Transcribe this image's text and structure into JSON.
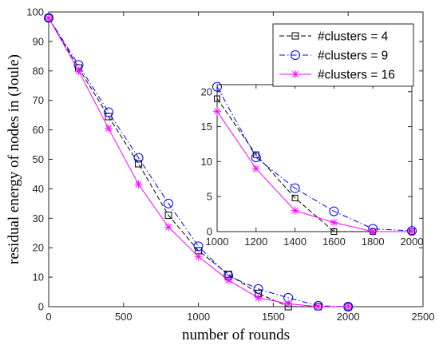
{
  "chart_data": [
    {
      "type": "line",
      "title": "",
      "xlabel": "number of rounds",
      "ylabel": "residual energy of nodes in (Joule)",
      "xlim": [
        0,
        2500
      ],
      "ylim": [
        0,
        100
      ],
      "xticks": [
        "0",
        "500",
        "1000",
        "1500",
        "2000",
        "2500"
      ],
      "yticks": [
        "0",
        "10",
        "20",
        "30",
        "40",
        "50",
        "60",
        "70",
        "80",
        "90",
        "100"
      ],
      "grid": false,
      "legend_position": "top-right",
      "series": [
        {
          "name": "#clusters = 4",
          "color": "#000000",
          "line_style": "dashed",
          "marker": "square",
          "x": [
            0,
            200,
            400,
            600,
            800,
            1000,
            1200,
            1400,
            1600,
            1800,
            2000
          ],
          "y": [
            98,
            81,
            64.5,
            48.5,
            31,
            19,
            11,
            4.5,
            0,
            0,
            0
          ]
        },
        {
          "name": "#clusters = 9",
          "color": "#0000ff",
          "line_style": "dash-dot",
          "marker": "circle",
          "x": [
            0,
            200,
            400,
            600,
            800,
            1000,
            1200,
            1400,
            1600,
            1800,
            2000
          ],
          "y": [
            98,
            82,
            66,
            50.5,
            35,
            20.5,
            10.5,
            6,
            3,
            0.3,
            0
          ]
        },
        {
          "name": "#clusters = 16",
          "color": "#ff00ff",
          "line_style": "solid",
          "marker": "asterisk",
          "x": [
            0,
            200,
            400,
            600,
            800,
            1000,
            1200,
            1400,
            1600,
            1800,
            2000
          ],
          "y": [
            98,
            80,
            60.5,
            41.5,
            27,
            17,
            9,
            3,
            1,
            0,
            0
          ]
        }
      ]
    },
    {
      "type": "line",
      "title": "",
      "xlabel": "",
      "ylabel": "",
      "xlim": [
        1000,
        2000
      ],
      "ylim": [
        0,
        21
      ],
      "xticks": [
        "1000",
        "1200",
        "1400",
        "1600",
        "1800",
        "2000"
      ],
      "yticks": [
        "0",
        "5",
        "10",
        "15",
        "20"
      ],
      "grid": false,
      "series": [
        {
          "name": "#clusters = 4",
          "color": "#000000",
          "line_style": "dashed",
          "marker": "square",
          "x": [
            1000,
            1200,
            1400,
            1600,
            1800,
            2000
          ],
          "y": [
            19,
            11,
            4.8,
            0,
            0,
            0
          ]
        },
        {
          "name": "#clusters = 9",
          "color": "#0000ff",
          "line_style": "dash-dot",
          "marker": "circle",
          "x": [
            1000,
            1200,
            1400,
            1600,
            1800,
            2000
          ],
          "y": [
            20.7,
            10.6,
            6.2,
            2.9,
            0.4,
            0.1
          ]
        },
        {
          "name": "#clusters = 16",
          "color": "#ff00ff",
          "line_style": "solid",
          "marker": "asterisk",
          "x": [
            1000,
            1200,
            1400,
            1600,
            1800,
            2000
          ],
          "y": [
            17.2,
            9,
            3,
            1.3,
            0,
            0
          ]
        }
      ]
    }
  ]
}
